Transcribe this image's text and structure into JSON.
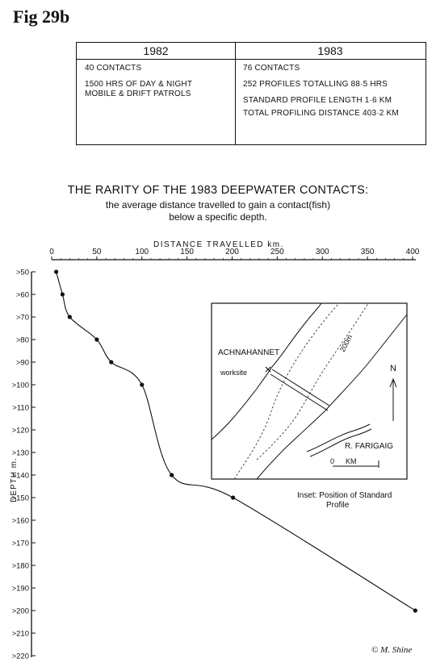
{
  "figure_label": "Fig 29b",
  "table": {
    "year_1982": "1982",
    "lines_1982": [
      "40 CONTACTS",
      "1500 HRS OF DAY & NIGHT",
      "MOBILE & DRIFT PATROLS"
    ],
    "year_1983": "1983",
    "lines_1983a": [
      "76 CONTACTS",
      "252 PROFILES TOTALLING 88·5 HRS"
    ],
    "lines_1983b": [
      "STANDARD PROFILE LENGTH 1·6 KM",
      "TOTAL PROFILING DISTANCE 403·2 KM"
    ]
  },
  "inset": {
    "place_label": "ACHNAHANNET",
    "worksite_label": "worksite",
    "contour_label": "200m",
    "north_label": "N",
    "river_label": "R. FARIGAIG",
    "scale_zero": "0",
    "scale_unit": "KM",
    "caption_line1": "Inset:  Position of Standard",
    "caption_line2": "Profile"
  },
  "signature": "© M. Shine",
  "chart_data": {
    "type": "line",
    "title": "THE RARITY OF THE 1983 DEEPWATER CONTACTS:",
    "subtitle_line1": "the average distance travelled to gain a contact(fish)",
    "subtitle_line2": "below a specific depth.",
    "xlabel": "DISTANCE  TRAVELLED  km.",
    "ylabel": "DEPTH  m.",
    "x_ticks": [
      "0",
      "50",
      "100",
      "150",
      "200",
      "250",
      "300",
      "350",
      "400"
    ],
    "y_ticks": [
      ">50",
      ">60",
      ">70",
      ">80",
      ">90",
      ">100",
      ">110",
      ">120",
      ">130",
      ">140",
      ">150",
      ">160",
      ">170",
      ">180",
      ">190",
      ">200",
      ">210",
      ">220"
    ],
    "xlim": [
      0,
      400
    ],
    "ylim": [
      50,
      220
    ],
    "points": [
      {
        "depth": 50,
        "distance": 5
      },
      {
        "depth": 60,
        "distance": 12
      },
      {
        "depth": 70,
        "distance": 20
      },
      {
        "depth": 80,
        "distance": 50
      },
      {
        "depth": 90,
        "distance": 66
      },
      {
        "depth": 100,
        "distance": 100
      },
      {
        "depth": 140,
        "distance": 133
      },
      {
        "depth": 150,
        "distance": 201
      },
      {
        "depth": 200,
        "distance": 403
      }
    ]
  }
}
